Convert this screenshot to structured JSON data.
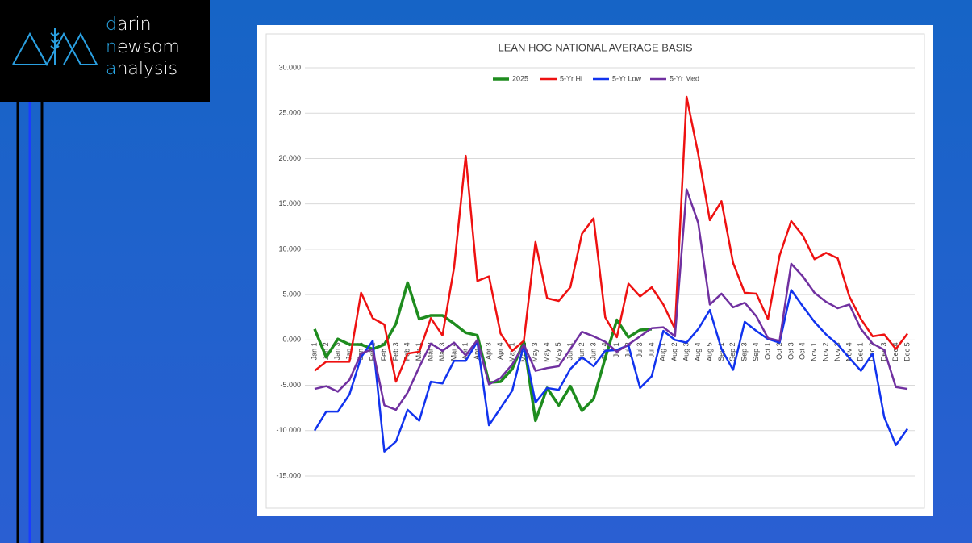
{
  "brand": [
    "darin",
    "newsom",
    "analysis"
  ],
  "chart_data": {
    "type": "line",
    "title": "LEAN HOG NATIONAL AVERAGE BASIS",
    "categories": [
      "Jan 1",
      "Jan 2",
      "Jan 3",
      "Jan 4",
      "Jan 5",
      "Feb 1",
      "Feb 2",
      "Feb 3",
      "Feb 4",
      "Mar 1",
      "Mar 2",
      "Mar 3",
      "Mar 4",
      "Apr 1",
      "Apr 2",
      "Apr 3",
      "Apr 4",
      "May 1",
      "May 2",
      "May 3",
      "May 4",
      "May 5",
      "Jun 1",
      "Jun 2",
      "Jun 3",
      "Jun 4",
      "Jul 1",
      "Jul 2",
      "Jul 3",
      "Jul 4",
      "Aug 1",
      "Aug 2",
      "Aug 3",
      "Aug 4",
      "Aug 5",
      "Sep 1",
      "Sep 2",
      "Sep 3",
      "Sep 4",
      "Oct 1",
      "Oct 2",
      "Oct 3",
      "Oct 4",
      "Nov 1",
      "Nov 2",
      "Nov 3",
      "Nov 4",
      "Dec 1",
      "Dec 2",
      "Dec 3",
      "Dec 4",
      "Dec 5"
    ],
    "series": [
      {
        "name": "2025",
        "color": "#1e8c1e",
        "width": 3.5,
        "values": [
          1.2,
          -1.9,
          0.1,
          -0.5,
          -0.5,
          -1.0,
          -0.5,
          1.8,
          6.3,
          2.3,
          2.7,
          2.7,
          1.8,
          0.8,
          0.5,
          -4.7,
          -4.6,
          -3.2,
          -0.2,
          -8.9,
          -5.3,
          -7.2,
          -5.1,
          -7.8,
          -6.5,
          -2.0,
          2.2,
          0.3,
          1.1,
          1.2,
          null,
          null,
          null,
          null,
          null,
          null,
          null,
          null,
          null,
          null,
          null,
          null,
          null,
          null,
          null,
          null,
          null,
          null,
          null,
          null,
          null,
          null
        ]
      },
      {
        "name": "5-Yr Hi",
        "color": "#ee1111",
        "width": 2.5,
        "values": [
          -3.4,
          -2.4,
          -2.4,
          -2.4,
          5.2,
          2.4,
          1.7,
          -4.6,
          -1.5,
          -1.3,
          2.4,
          0.5,
          8.0,
          20.3,
          6.5,
          7.0,
          0.7,
          -1.2,
          -0.1,
          10.8,
          4.6,
          4.3,
          5.8,
          11.7,
          13.4,
          2.5,
          0.3,
          6.2,
          4.8,
          5.8,
          3.9,
          1.2,
          26.8,
          20.5,
          13.2,
          15.3,
          8.5,
          5.2,
          5.1,
          2.3,
          9.3,
          13.1,
          11.5,
          8.9,
          9.6,
          9.0,
          4.8,
          2.3,
          0.4,
          0.6,
          -1.0,
          0.7
        ]
      },
      {
        "name": "5-Yr Low",
        "color": "#1133ee",
        "width": 2.5,
        "values": [
          -10.0,
          -7.9,
          -7.9,
          -6.0,
          -1.9,
          -0.1,
          -12.3,
          -11.2,
          -7.7,
          -8.9,
          -4.6,
          -4.8,
          -2.3,
          -2.3,
          -0.2,
          -9.4,
          -7.5,
          -5.6,
          -0.5,
          -6.9,
          -5.3,
          -5.5,
          -3.2,
          -1.9,
          -2.9,
          -1.2,
          -1.1,
          -0.6,
          -5.3,
          -4.0,
          1.0,
          0.0,
          -0.3,
          1.2,
          3.3,
          -1.0,
          -3.3,
          2.0,
          1.0,
          0.1,
          -0.3,
          5.5,
          3.7,
          2.0,
          0.6,
          -0.5,
          -2.0,
          -3.4,
          -1.5,
          -8.5,
          -11.6,
          -9.8
        ]
      },
      {
        "name": "5-Yr Med",
        "color": "#7030a0",
        "width": 2.5,
        "values": [
          -5.4,
          -5.1,
          -5.7,
          -4.4,
          -1.5,
          -1.0,
          -7.2,
          -7.7,
          -5.8,
          -3.0,
          -0.4,
          -1.2,
          -0.3,
          -1.7,
          0.0,
          -4.9,
          -4.2,
          -2.7,
          -0.5,
          -3.4,
          -3.1,
          -2.9,
          -1.0,
          0.9,
          0.4,
          -0.2,
          -1.3,
          -0.5,
          0.4,
          1.3,
          1.4,
          0.4,
          16.6,
          12.9,
          3.9,
          5.1,
          3.6,
          4.1,
          2.6,
          0.2,
          -0.1,
          8.4,
          7.0,
          5.2,
          4.2,
          3.5,
          3.9,
          1.2,
          -0.4,
          -1.1,
          -5.2,
          -5.4
        ]
      }
    ],
    "ylim": [
      -15,
      30
    ],
    "yticks": [
      {
        "value": 30,
        "label": "30.000"
      },
      {
        "value": 25,
        "label": "25.000"
      },
      {
        "value": 20,
        "label": "20.000"
      },
      {
        "value": 15,
        "label": "15.000"
      },
      {
        "value": 10,
        "label": "10.000"
      },
      {
        "value": 5,
        "label": "5.000"
      },
      {
        "value": 0,
        "label": "0.000"
      },
      {
        "value": -5,
        "label": "-5.000"
      },
      {
        "value": -10,
        "label": "-10.000"
      },
      {
        "value": -15,
        "label": "-15.000"
      }
    ],
    "grid": true,
    "legend": "top"
  }
}
